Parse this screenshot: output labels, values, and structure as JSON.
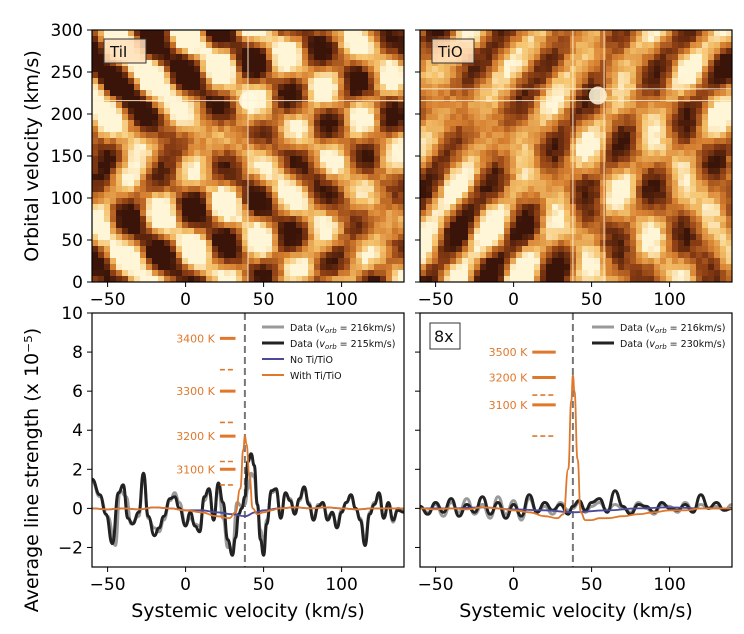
{
  "figure_label": "",
  "chart_data": [
    {
      "type": "heatmap",
      "panel": "top-left",
      "label": "TiI",
      "xlim": [
        -60,
        140
      ],
      "ylim": [
        0,
        300
      ],
      "xticks": [
        -50,
        0,
        50,
        100
      ],
      "yticks": [
        0,
        50,
        100,
        150,
        200,
        250,
        300
      ],
      "ylabel": "Orbital velocity (km/s)",
      "xlabel": "",
      "colormap": "orange-brown",
      "peak": {
        "x": 40,
        "y": 216
      },
      "crosshair_lines": [
        {
          "x": 40
        },
        {
          "y": 216
        }
      ]
    },
    {
      "type": "heatmap",
      "panel": "top-right",
      "label": "TiO",
      "xlim": [
        -60,
        140
      ],
      "ylim": [
        0,
        300
      ],
      "xticks": [
        -50,
        0,
        50,
        100
      ],
      "yticks": [],
      "xlabel": "",
      "ylabel": "",
      "colormap": "orange-brown",
      "peak": {
        "x": 54,
        "y": 222
      },
      "crosshair_lines": [
        {
          "x": 38
        },
        {
          "x": 58
        },
        {
          "y": 216
        },
        {
          "y": 230
        }
      ]
    },
    {
      "type": "line",
      "panel": "bottom-left",
      "xlim": [
        -60,
        140
      ],
      "ylim": [
        -3,
        10
      ],
      "xticks": [
        -50,
        0,
        50,
        100
      ],
      "yticks": [
        -2,
        0,
        2,
        4,
        6,
        8,
        10
      ],
      "xlabel": "Systemic velocity (km/s)",
      "ylabel": "Average line strength (x 10⁻⁵)",
      "vline_x": 38,
      "legend_position": "top-right",
      "legend": [
        {
          "text": "Data (v_orb = 216km/s)",
          "sub": "orb",
          "pre": "Data (",
          "post": " = 216km/s)",
          "color": "#9a9a9a"
        },
        {
          "text": "Data (v_orb = 215km/s)",
          "sub": "orb",
          "pre": "Data (",
          "post": " = 215km/s)",
          "color": "#222222"
        },
        {
          "text": "No Ti/TiO",
          "color": "#4a4a9a"
        },
        {
          "text": "With Ti/TiO",
          "color": "#e0782c"
        }
      ],
      "temperature_markers": [
        {
          "label": "3400 K",
          "value": 8.7,
          "style": "solid"
        },
        {
          "label": "",
          "value": 7.1,
          "style": "dashed"
        },
        {
          "label": "3300 K",
          "value": 6.0,
          "style": "solid"
        },
        {
          "label": "",
          "value": 4.4,
          "style": "dashed"
        },
        {
          "label": "3200 K",
          "value": 3.7,
          "style": "solid"
        },
        {
          "label": "",
          "value": 2.4,
          "style": "dashed"
        },
        {
          "label": "3100 K",
          "value": 2.0,
          "style": "solid"
        },
        {
          "label": "",
          "value": 1.2,
          "style": "dashed"
        }
      ],
      "series": [
        {
          "name": "Data (v_orb = 216km/s)",
          "color": "#9a9a9a",
          "x": [
            -60,
            -55,
            -50,
            -45,
            -42,
            -38,
            -35,
            -30,
            -27,
            -24,
            -20,
            -17,
            -14,
            -10,
            -7,
            -4,
            0,
            3,
            6,
            9,
            12,
            15,
            18,
            21,
            24,
            27,
            30,
            33,
            36,
            38,
            40,
            42,
            44,
            46,
            48,
            50,
            52,
            55,
            58,
            61,
            64,
            67,
            70,
            73,
            76,
            79,
            82,
            85,
            88,
            91,
            94,
            97,
            100,
            103,
            106,
            109,
            112,
            115,
            118,
            121,
            124,
            127,
            130,
            133,
            136,
            140
          ],
          "y": [
            1.4,
            0.6,
            -0.4,
            -1.9,
            0.9,
            0.6,
            -0.8,
            -0.4,
            1.7,
            -0.5,
            -1.0,
            -1.2,
            -0.6,
            0.4,
            0.8,
            0.3,
            -0.8,
            -0.5,
            -0.8,
            -0.9,
            0.4,
            0.9,
            -0.4,
            1.1,
            -0.5,
            -2.0,
            -2.1,
            0.3,
            0.1,
            0.2,
            1.0,
            1.8,
            1.6,
            0.2,
            -1.1,
            -1.8,
            -0.6,
            0.8,
            0.9,
            -0.4,
            0.7,
            0.5,
            -0.2,
            0.4,
            1.0,
            0.3,
            -0.5,
            0.2,
            0.2,
            -0.4,
            -0.3,
            -0.8,
            -0.1,
            0.3,
            0.6,
            0.0,
            -0.5,
            -1.6,
            -0.2,
            0.3,
            0.6,
            -0.5,
            0.2,
            -0.7,
            0.0,
            -0.1
          ]
        },
        {
          "name": "Data (v_orb = 215km/s)",
          "color": "#222222",
          "x": [
            -60,
            -55,
            -51,
            -47,
            -43,
            -40,
            -37,
            -34,
            -30,
            -27,
            -24,
            -20,
            -17,
            -14,
            -10,
            -7,
            -4,
            0,
            3,
            6,
            9,
            12,
            15,
            18,
            21,
            24,
            27,
            30,
            32,
            34,
            36,
            38,
            40,
            42,
            44,
            46,
            48,
            50,
            52,
            55,
            58,
            61,
            64,
            67,
            70,
            73,
            76,
            79,
            82,
            85,
            88,
            91,
            94,
            97,
            100,
            103,
            106,
            109,
            112,
            115,
            118,
            121,
            124,
            127,
            130,
            133,
            136,
            140
          ],
          "y": [
            1.5,
            0.7,
            -0.3,
            -1.8,
            0.8,
            1.2,
            -0.5,
            -0.8,
            -0.2,
            1.8,
            -0.4,
            -1.4,
            -1.0,
            -0.4,
            0.5,
            0.6,
            0.0,
            -0.9,
            -0.2,
            -0.9,
            -1.2,
            0.6,
            1.0,
            -0.6,
            1.3,
            0.3,
            -1.6,
            -2.4,
            -1.5,
            -0.3,
            0.0,
            0.6,
            2.4,
            2.8,
            2.2,
            0.2,
            -1.6,
            -2.4,
            -0.8,
            0.9,
            1.0,
            -0.5,
            0.8,
            0.4,
            -0.3,
            0.5,
            1.1,
            0.2,
            -0.6,
            0.1,
            0.3,
            -0.6,
            -0.2,
            -1.0,
            -0.2,
            0.3,
            0.7,
            0.0,
            -0.6,
            -1.9,
            -0.3,
            0.2,
            0.8,
            -0.5,
            0.3,
            -0.6,
            -0.1,
            -0.2
          ]
        },
        {
          "name": "No Ti/TiO",
          "color": "#4a4a9a",
          "x": [
            -60,
            -50,
            -40,
            -30,
            -20,
            -10,
            0,
            10,
            20,
            30,
            38,
            45,
            50,
            60,
            70,
            80,
            90,
            100,
            110,
            120,
            130,
            140
          ],
          "y": [
            0.0,
            -0.05,
            0.0,
            -0.05,
            0.05,
            0.0,
            -0.1,
            -0.1,
            -0.2,
            -0.3,
            -0.4,
            -0.2,
            -0.1,
            0.0,
            0.05,
            0.0,
            0.05,
            0.0,
            -0.05,
            0.0,
            0.0,
            0.0
          ]
        },
        {
          "name": "With Ti/TiO",
          "color": "#e0782c",
          "x": [
            -60,
            -50,
            -40,
            -30,
            -20,
            -10,
            0,
            10,
            20,
            28,
            32,
            35,
            37,
            38,
            39,
            41,
            43,
            46,
            50,
            55,
            60,
            70,
            80,
            90,
            100,
            110,
            120,
            130,
            140
          ],
          "y": [
            0.0,
            -0.05,
            0.0,
            -0.05,
            0.05,
            0.0,
            -0.1,
            -0.2,
            -0.4,
            -0.5,
            -0.2,
            1.0,
            3.0,
            3.7,
            3.3,
            1.6,
            0.0,
            -0.3,
            -0.2,
            -0.1,
            0.0,
            0.05,
            0.0,
            0.05,
            0.0,
            -0.05,
            0.0,
            0.0,
            0.0
          ]
        }
      ]
    },
    {
      "type": "line",
      "panel": "bottom-right",
      "label": "8x",
      "xlim": [
        -60,
        140
      ],
      "ylim": [
        -3,
        10
      ],
      "xticks": [
        -50,
        0,
        50,
        100
      ],
      "yticks": [],
      "xlabel": "Systemic velocity (km/s)",
      "ylabel": "",
      "vline_x": 38,
      "legend_position": "top-right",
      "legend": [
        {
          "text": "Data (v_orb = 216km/s)",
          "sub": "orb",
          "pre": "Data (",
          "post": " = 216km/s)",
          "color": "#9a9a9a"
        },
        {
          "text": "Data (v_orb = 230km/s)",
          "sub": "orb",
          "pre": "Data (",
          "post": " = 230km/s)",
          "color": "#222222"
        }
      ],
      "temperature_markers": [
        {
          "label": "3500 K",
          "value": 8.0,
          "style": "solid"
        },
        {
          "label": "3200 K",
          "value": 6.7,
          "style": "solid"
        },
        {
          "label": "",
          "value": 5.8,
          "style": "dashed"
        },
        {
          "label": "3100 K",
          "value": 5.3,
          "style": "solid"
        },
        {
          "label": "",
          "value": 3.7,
          "style": "dashed"
        }
      ],
      "series": [
        {
          "name": "Data (v_orb = 216km/s)",
          "color": "#9a9a9a",
          "x": [
            -60,
            -55,
            -50,
            -45,
            -40,
            -35,
            -30,
            -25,
            -20,
            -15,
            -10,
            -5,
            0,
            5,
            10,
            15,
            20,
            25,
            30,
            35,
            38,
            42,
            46,
            50,
            55,
            60,
            65,
            70,
            75,
            80,
            85,
            90,
            95,
            100,
            105,
            110,
            115,
            120,
            125,
            130,
            135,
            140
          ],
          "y": [
            0.1,
            -0.2,
            0.2,
            -0.4,
            0.3,
            -0.2,
            0.5,
            -0.3,
            0.2,
            -0.5,
            0.6,
            -0.3,
            0.4,
            -0.6,
            0.5,
            -0.2,
            0.1,
            -0.3,
            0.3,
            -0.1,
            0.0,
            0.3,
            -0.2,
            0.1,
            0.3,
            -0.1,
            0.2,
            0.0,
            -0.2,
            0.3,
            0.0,
            -0.3,
            0.2,
            0.1,
            -0.2,
            0.3,
            -0.1,
            0.2,
            0.0,
            0.1,
            -0.1,
            0.2
          ]
        },
        {
          "name": "Data (v_orb = 230km/s)",
          "color": "#222222",
          "x": [
            -60,
            -55,
            -50,
            -45,
            -40,
            -35,
            -30,
            -25,
            -20,
            -15,
            -10,
            -5,
            0,
            5,
            10,
            15,
            20,
            25,
            30,
            35,
            38,
            42,
            46,
            50,
            55,
            60,
            65,
            70,
            75,
            80,
            85,
            90,
            95,
            100,
            105,
            110,
            115,
            120,
            125,
            130,
            135,
            140
          ],
          "y": [
            0.1,
            -0.3,
            0.3,
            -0.2,
            0.5,
            -0.4,
            0.2,
            -0.2,
            0.6,
            -0.3,
            0.3,
            -0.5,
            0.2,
            -0.4,
            0.7,
            -0.2,
            0.3,
            -0.1,
            0.2,
            -0.3,
            0.1,
            0.4,
            -0.1,
            0.3,
            0.5,
            -0.2,
            0.9,
            0.1,
            -0.3,
            0.2,
            0.1,
            -0.2,
            0.3,
            0.0,
            -0.1,
            0.2,
            -0.2,
            0.7,
            0.0,
            0.3,
            -0.1,
            0.0
          ]
        },
        {
          "name": "With Ti/TiO",
          "color": "#e0782c",
          "x": [
            -60,
            -50,
            -40,
            -30,
            -20,
            -10,
            0,
            10,
            20,
            28,
            32,
            35,
            37,
            38,
            39,
            41,
            43,
            46,
            50,
            55,
            60,
            70,
            80,
            90,
            100,
            110,
            120,
            130,
            140
          ],
          "y": [
            0.0,
            -0.05,
            0.0,
            -0.05,
            0.05,
            0.0,
            -0.1,
            -0.2,
            -0.4,
            -0.5,
            -0.3,
            2.0,
            5.5,
            6.8,
            6.0,
            2.5,
            -0.2,
            -0.6,
            -0.6,
            -0.5,
            -0.5,
            -0.4,
            -0.3,
            -0.2,
            -0.1,
            -0.1,
            0.0,
            0.0,
            0.0
          ]
        },
        {
          "name": "No Ti/TiO",
          "color": "#4a4a9a",
          "x": [
            -60,
            -40,
            -20,
            0,
            20,
            38,
            60,
            80,
            100,
            120,
            140
          ],
          "y": [
            0.0,
            0.0,
            0.05,
            -0.05,
            -0.1,
            -0.2,
            -0.1,
            0.0,
            0.05,
            0.0,
            0.0
          ]
        }
      ]
    }
  ]
}
